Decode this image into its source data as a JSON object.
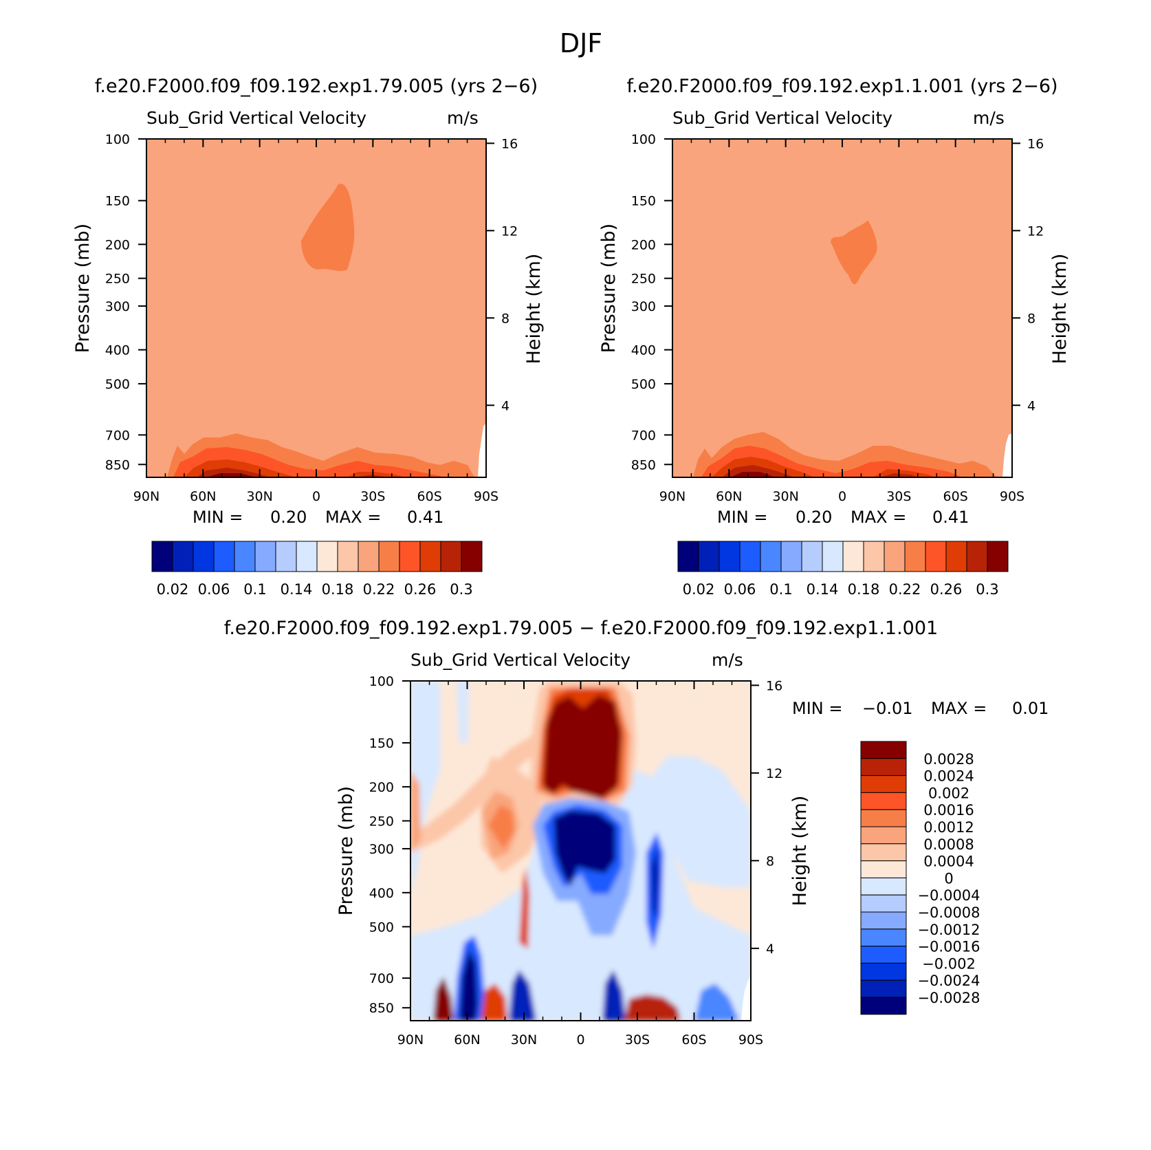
{
  "figure_title": "DJF",
  "left_panel": {
    "case_title": "f.e20.F2000.f09_f09.192.exp1.79.005 (yrs 2−6)",
    "variable": "Sub_Grid Vertical Velocity",
    "units": "m/s",
    "y_left_label": "Pressure (mb)",
    "y_right_label": "Height (km)",
    "min_label": "MIN =",
    "min_value": "0.20",
    "max_label": "MAX =",
    "max_value": "0.41"
  },
  "right_panel": {
    "case_title": "f.e20.F2000.f09_f09.192.exp1.1.001 (yrs 2−6)",
    "variable": "Sub_Grid Vertical Velocity",
    "units": "m/s",
    "y_left_label": "Pressure (mb)",
    "y_right_label": "Height (km)",
    "min_label": "MIN =",
    "min_value": "0.20",
    "max_label": "MAX =",
    "max_value": "0.41"
  },
  "diff_panel": {
    "case_title": "f.e20.F2000.f09_f09.192.exp1.79.005 − f.e20.F2000.f09_f09.192.exp1.1.001",
    "variable": "Sub_Grid Vertical Velocity",
    "units": "m/s",
    "y_left_label": "Pressure (mb)",
    "y_right_label": "Height (km)",
    "min_label": "MIN =",
    "min_value": "−0.01",
    "max_label": "MAX =",
    "max_value": "0.01"
  },
  "chart_data": [
    {
      "type": "heatmap",
      "title": "Sub_Grid Vertical Velocity",
      "units": "m/s",
      "xlabel": "",
      "ylabel": "Pressure (mb)",
      "ylabel_right": "Height (km)",
      "x_ticks": [
        "90N",
        "60N",
        "30N",
        "0",
        "30S",
        "60S",
        "90S"
      ],
      "x_range": [
        90,
        -90
      ],
      "y_ticks": [
        "100",
        "150",
        "200",
        "250",
        "300",
        "400",
        "500",
        "700",
        "850"
      ],
      "y_range_mb": [
        100,
        925
      ],
      "y_right_ticks": [
        "16",
        "12",
        "8",
        "4"
      ],
      "colorbar_labels": [
        "0.02",
        "0.06",
        "0.1",
        "0.14",
        "0.18",
        "0.22",
        "0.26",
        "0.3"
      ],
      "colorbar_colors": [
        "#00007a",
        "#0020b8",
        "#0037e0",
        "#1d5cff",
        "#4a86ff",
        "#86aaff",
        "#b5ccff",
        "#d8e8ff",
        "#fde8d8",
        "#fcc6a8",
        "#f9a47c",
        "#f87e47",
        "#fd5527",
        "#e03d06",
        "#b82308",
        "#870000"
      ],
      "background_level": "0.22",
      "min": 0.2,
      "max": 0.41
    },
    {
      "type": "heatmap",
      "title": "Sub_Grid Vertical Velocity",
      "units": "m/s",
      "ylabel": "Pressure (mb)",
      "ylabel_right": "Height (km)",
      "x_ticks": [
        "90N",
        "60N",
        "30N",
        "0",
        "30S",
        "60S",
        "90S"
      ],
      "y_ticks": [
        "100",
        "150",
        "200",
        "250",
        "300",
        "400",
        "500",
        "700",
        "850"
      ],
      "y_right_ticks": [
        "16",
        "12",
        "8",
        "4"
      ],
      "colorbar_labels": [
        "0.02",
        "0.06",
        "0.1",
        "0.14",
        "0.18",
        "0.22",
        "0.26",
        "0.3"
      ],
      "background_level": "0.22",
      "min": 0.2,
      "max": 0.41
    },
    {
      "type": "heatmap",
      "title": "Sub_Grid Vertical Velocity",
      "units": "m/s",
      "ylabel": "Pressure (mb)",
      "ylabel_right": "Height (km)",
      "x_ticks": [
        "90N",
        "60N",
        "30N",
        "0",
        "30S",
        "60S",
        "90S"
      ],
      "y_ticks": [
        "100",
        "150",
        "200",
        "250",
        "300",
        "400",
        "500",
        "700",
        "850"
      ],
      "y_right_ticks": [
        "16",
        "12",
        "8",
        "4"
      ],
      "colorbar_labels": [
        "0.0028",
        "0.0024",
        "0.002",
        "0.0016",
        "0.0012",
        "0.0008",
        "0.0004",
        "0",
        "−0.0004",
        "−0.0008",
        "−0.0012",
        "−0.0016",
        "−0.002",
        "−0.0024",
        "−0.0028"
      ],
      "colorbar_colors": [
        "#870000",
        "#b82308",
        "#e03d06",
        "#fd5527",
        "#f87e47",
        "#f9a47c",
        "#fcc6a8",
        "#fde8d8",
        "#d8e8ff",
        "#b5ccff",
        "#86aaff",
        "#4a86ff",
        "#1d5cff",
        "#0037e0",
        "#0020b8",
        "#00007a"
      ],
      "min": -0.01,
      "max": 0.01
    }
  ]
}
